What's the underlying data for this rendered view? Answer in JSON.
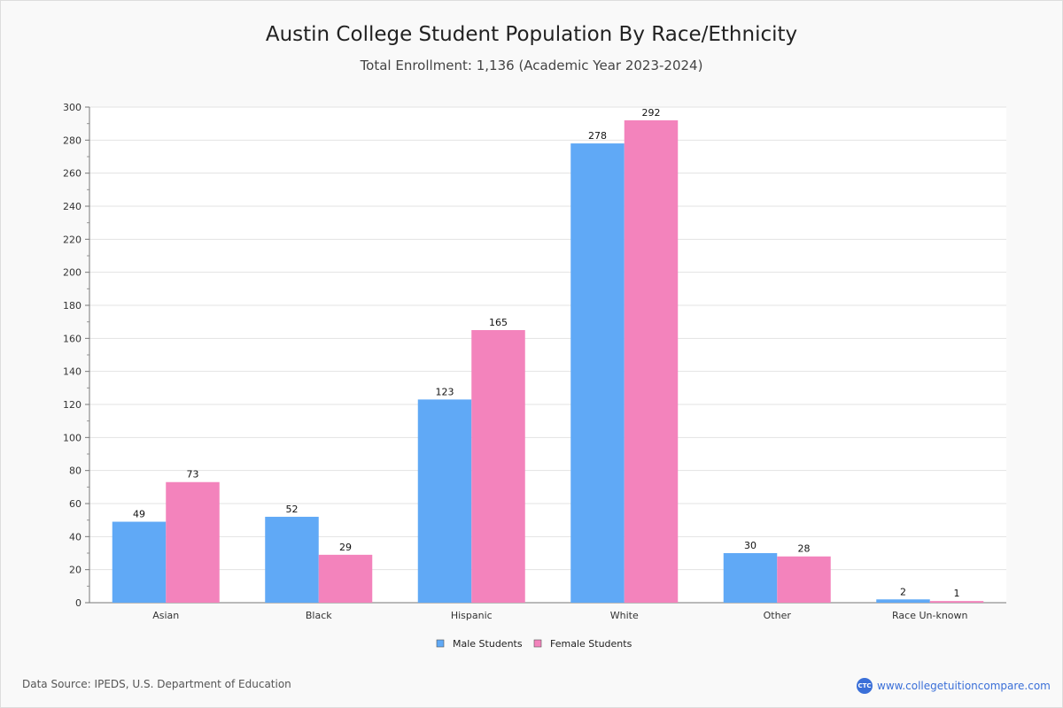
{
  "chart_data": {
    "type": "bar",
    "title": "Austin College Student Population By Race/Ethnicity",
    "subtitle": "Total Enrollment: 1,136 (Academic Year 2023-2024)",
    "categories": [
      "Asian",
      "Black",
      "Hispanic",
      "White",
      "Other",
      "Race Un-known"
    ],
    "series": [
      {
        "name": "Male Students",
        "color": "#60a9f6",
        "values": [
          49,
          52,
          123,
          278,
          30,
          2
        ]
      },
      {
        "name": "Female Students",
        "color": "#f383bc",
        "values": [
          73,
          29,
          165,
          292,
          28,
          1
        ]
      }
    ],
    "ylim": [
      0,
      300
    ],
    "yticks": [
      0,
      20,
      40,
      60,
      80,
      100,
      120,
      140,
      160,
      180,
      200,
      220,
      240,
      260,
      280,
      300
    ],
    "grid": true,
    "legend": "bottom"
  },
  "footer": {
    "source": "Data Source: IPEDS, U.S. Department of Education",
    "logo_text": "CTC",
    "site": "www.collegetuitioncompare.com"
  }
}
